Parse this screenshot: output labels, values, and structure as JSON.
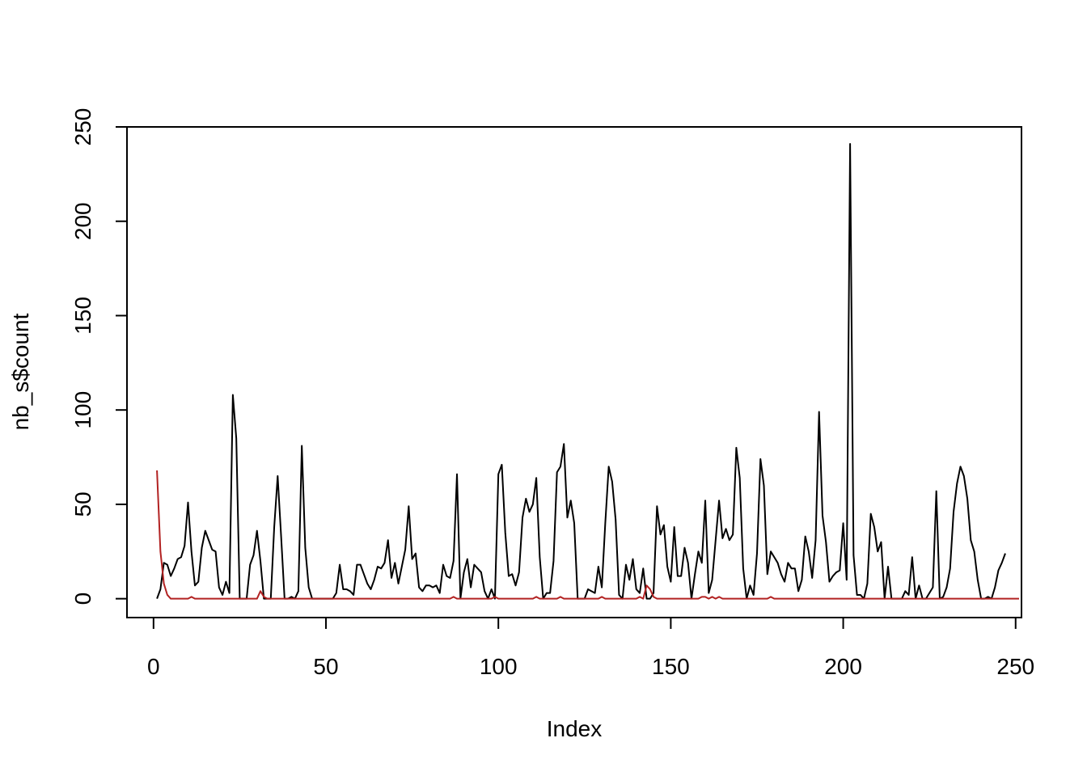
{
  "chart_data": {
    "type": "line",
    "title": "",
    "xlabel": "Index",
    "ylabel": "nb_s$count",
    "xlim": [
      -7.7,
      251.7
    ],
    "ylim": [
      -10,
      250
    ],
    "x_ticks": [
      0,
      50,
      100,
      150,
      200,
      250
    ],
    "y_ticks": [
      0,
      50,
      100,
      150,
      200,
      250
    ],
    "grid": false,
    "legend": "none",
    "series": [
      {
        "color": "#000000",
        "x_start": 1,
        "values": [
          0,
          5,
          19,
          18,
          12,
          16,
          21,
          22,
          28,
          51,
          25,
          7,
          9,
          27,
          36,
          31,
          26,
          25,
          6,
          2,
          9,
          3,
          108,
          85,
          0,
          0,
          0,
          18,
          23,
          36,
          20,
          0,
          0,
          0,
          38,
          65,
          33,
          0,
          0,
          1,
          0,
          4,
          81,
          27,
          6,
          0,
          0,
          0,
          0,
          0,
          0,
          0,
          3,
          18,
          5,
          5,
          4,
          2,
          18,
          18,
          13,
          8,
          5,
          10,
          17,
          16,
          19,
          31,
          11,
          19,
          8,
          17,
          26,
          49,
          21,
          24,
          6,
          4,
          7,
          7,
          6,
          7,
          3,
          18,
          12,
          11,
          20,
          66,
          0,
          14,
          21,
          6,
          18,
          16,
          14,
          4,
          0,
          5,
          0,
          66,
          71,
          35,
          12,
          13,
          7,
          14,
          43,
          53,
          46,
          50,
          64,
          22,
          0,
          3,
          3,
          20,
          67,
          70,
          82,
          43,
          52,
          40,
          0,
          0,
          0,
          5,
          4,
          3,
          17,
          6,
          40,
          70,
          62,
          42,
          2,
          0,
          18,
          10,
          21,
          5,
          3,
          16,
          0,
          0,
          3,
          49,
          34,
          39,
          17,
          9,
          38,
          12,
          12,
          27,
          19,
          0,
          13,
          25,
          19,
          52,
          3,
          10,
          31,
          52,
          32,
          37,
          31,
          34,
          80,
          64,
          16,
          0,
          7,
          2,
          24,
          74,
          60,
          13,
          25,
          22,
          19,
          13,
          9,
          19,
          16,
          16,
          4,
          10,
          33,
          25,
          11,
          31,
          99,
          44,
          30,
          9,
          12,
          14,
          15,
          40,
          10,
          241,
          23,
          2,
          2,
          0,
          8,
          45,
          38,
          25,
          30,
          0,
          17,
          0,
          0,
          0,
          0,
          4,
          2,
          22,
          0,
          7,
          0,
          0,
          3,
          6,
          57,
          0,
          1,
          6,
          16,
          46,
          61,
          70,
          65,
          53,
          31,
          25,
          10,
          0,
          0,
          1,
          0,
          6,
          15,
          19,
          24
        ]
      },
      {
        "color": "#B22222",
        "x_start": 1,
        "values": [
          68,
          25,
          8,
          2,
          0,
          0,
          0,
          0,
          0,
          0,
          1,
          0,
          0,
          0,
          0,
          0,
          0,
          0,
          0,
          0,
          0,
          0,
          0,
          0,
          0,
          0,
          0,
          0,
          0,
          0,
          4,
          1,
          0,
          0,
          0,
          0,
          0,
          0,
          0,
          0,
          0,
          0,
          0,
          0,
          0,
          0,
          0,
          0,
          0,
          0,
          0,
          0,
          0,
          0,
          0,
          0,
          0,
          0,
          0,
          0,
          0,
          0,
          0,
          0,
          0,
          0,
          0,
          0,
          0,
          0,
          0,
          0,
          0,
          0,
          0,
          0,
          0,
          0,
          0,
          0,
          0,
          0,
          0,
          0,
          0,
          0,
          1,
          0,
          0,
          0,
          0,
          0,
          0,
          0,
          0,
          0,
          0,
          0,
          1,
          0,
          0,
          0,
          0,
          0,
          0,
          0,
          0,
          0,
          0,
          0,
          1,
          0,
          0,
          0,
          0,
          0,
          0,
          1,
          0,
          0,
          0,
          0,
          0,
          0,
          0,
          0,
          0,
          0,
          0,
          1,
          0,
          0,
          0,
          0,
          0,
          0,
          0,
          0,
          0,
          0,
          1,
          0,
          7,
          5,
          1,
          0,
          0,
          0,
          0,
          0,
          0,
          0,
          0,
          0,
          0,
          0,
          0,
          0,
          1,
          1,
          0,
          1,
          0,
          1,
          0,
          0,
          0,
          0,
          0,
          0,
          0,
          0,
          0,
          0,
          0,
          0,
          0,
          0,
          1,
          0,
          0,
          0,
          0,
          0,
          0,
          0,
          0,
          0,
          0,
          0,
          0,
          0,
          0,
          0,
          0,
          0,
          0,
          0,
          0,
          0,
          0,
          0,
          0,
          0,
          0,
          0,
          0,
          0,
          0,
          0,
          0,
          0,
          0,
          0,
          0,
          0,
          0,
          0,
          0,
          0,
          0,
          0,
          0,
          0,
          0,
          0,
          0,
          0,
          0,
          0,
          0,
          0,
          0,
          0,
          0,
          0,
          0,
          0,
          0,
          0,
          0,
          0,
          0,
          0,
          0,
          0,
          0,
          0,
          0,
          0,
          0
        ]
      }
    ]
  }
}
